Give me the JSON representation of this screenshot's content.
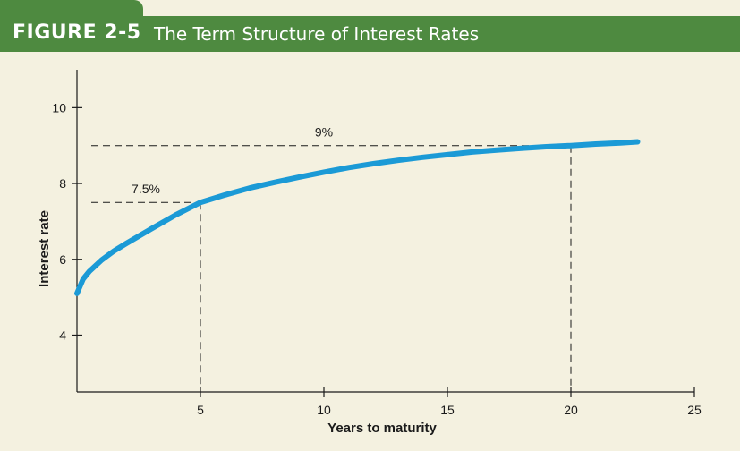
{
  "header": {
    "label": "FIGURE 2-5",
    "title": "The Term Structure of Interest Rates"
  },
  "chart_data": {
    "type": "line",
    "title": "The Term Structure of Interest Rates",
    "xlabel": "Years to maturity",
    "ylabel": "Interest rate",
    "xlim": [
      0,
      25
    ],
    "ylim": [
      2.5,
      11
    ],
    "x_ticks": [
      5,
      10,
      15,
      20,
      25
    ],
    "y_ticks": [
      4,
      6,
      8,
      10
    ],
    "grid": false,
    "curve_color": "#1b9ad6",
    "series": [
      {
        "x": [
          0,
          0.25,
          0.5,
          1,
          1.5,
          2,
          3,
          4,
          5,
          6,
          7,
          8,
          9,
          10,
          11,
          12,
          13,
          14,
          15,
          16,
          17,
          18,
          19,
          20,
          21,
          22,
          22.7
        ],
        "values": [
          5.1,
          5.48,
          5.68,
          5.98,
          6.22,
          6.42,
          6.8,
          7.17,
          7.5,
          7.7,
          7.88,
          8.03,
          8.17,
          8.3,
          8.42,
          8.52,
          8.61,
          8.69,
          8.76,
          8.83,
          8.88,
          8.93,
          8.97,
          9.0,
          9.04,
          9.07,
          9.1
        ]
      }
    ],
    "annotations": [
      {
        "text": "7.5%",
        "x": 5,
        "y": 7.5
      },
      {
        "text": "9%",
        "x": 20,
        "y": 9
      }
    ]
  }
}
